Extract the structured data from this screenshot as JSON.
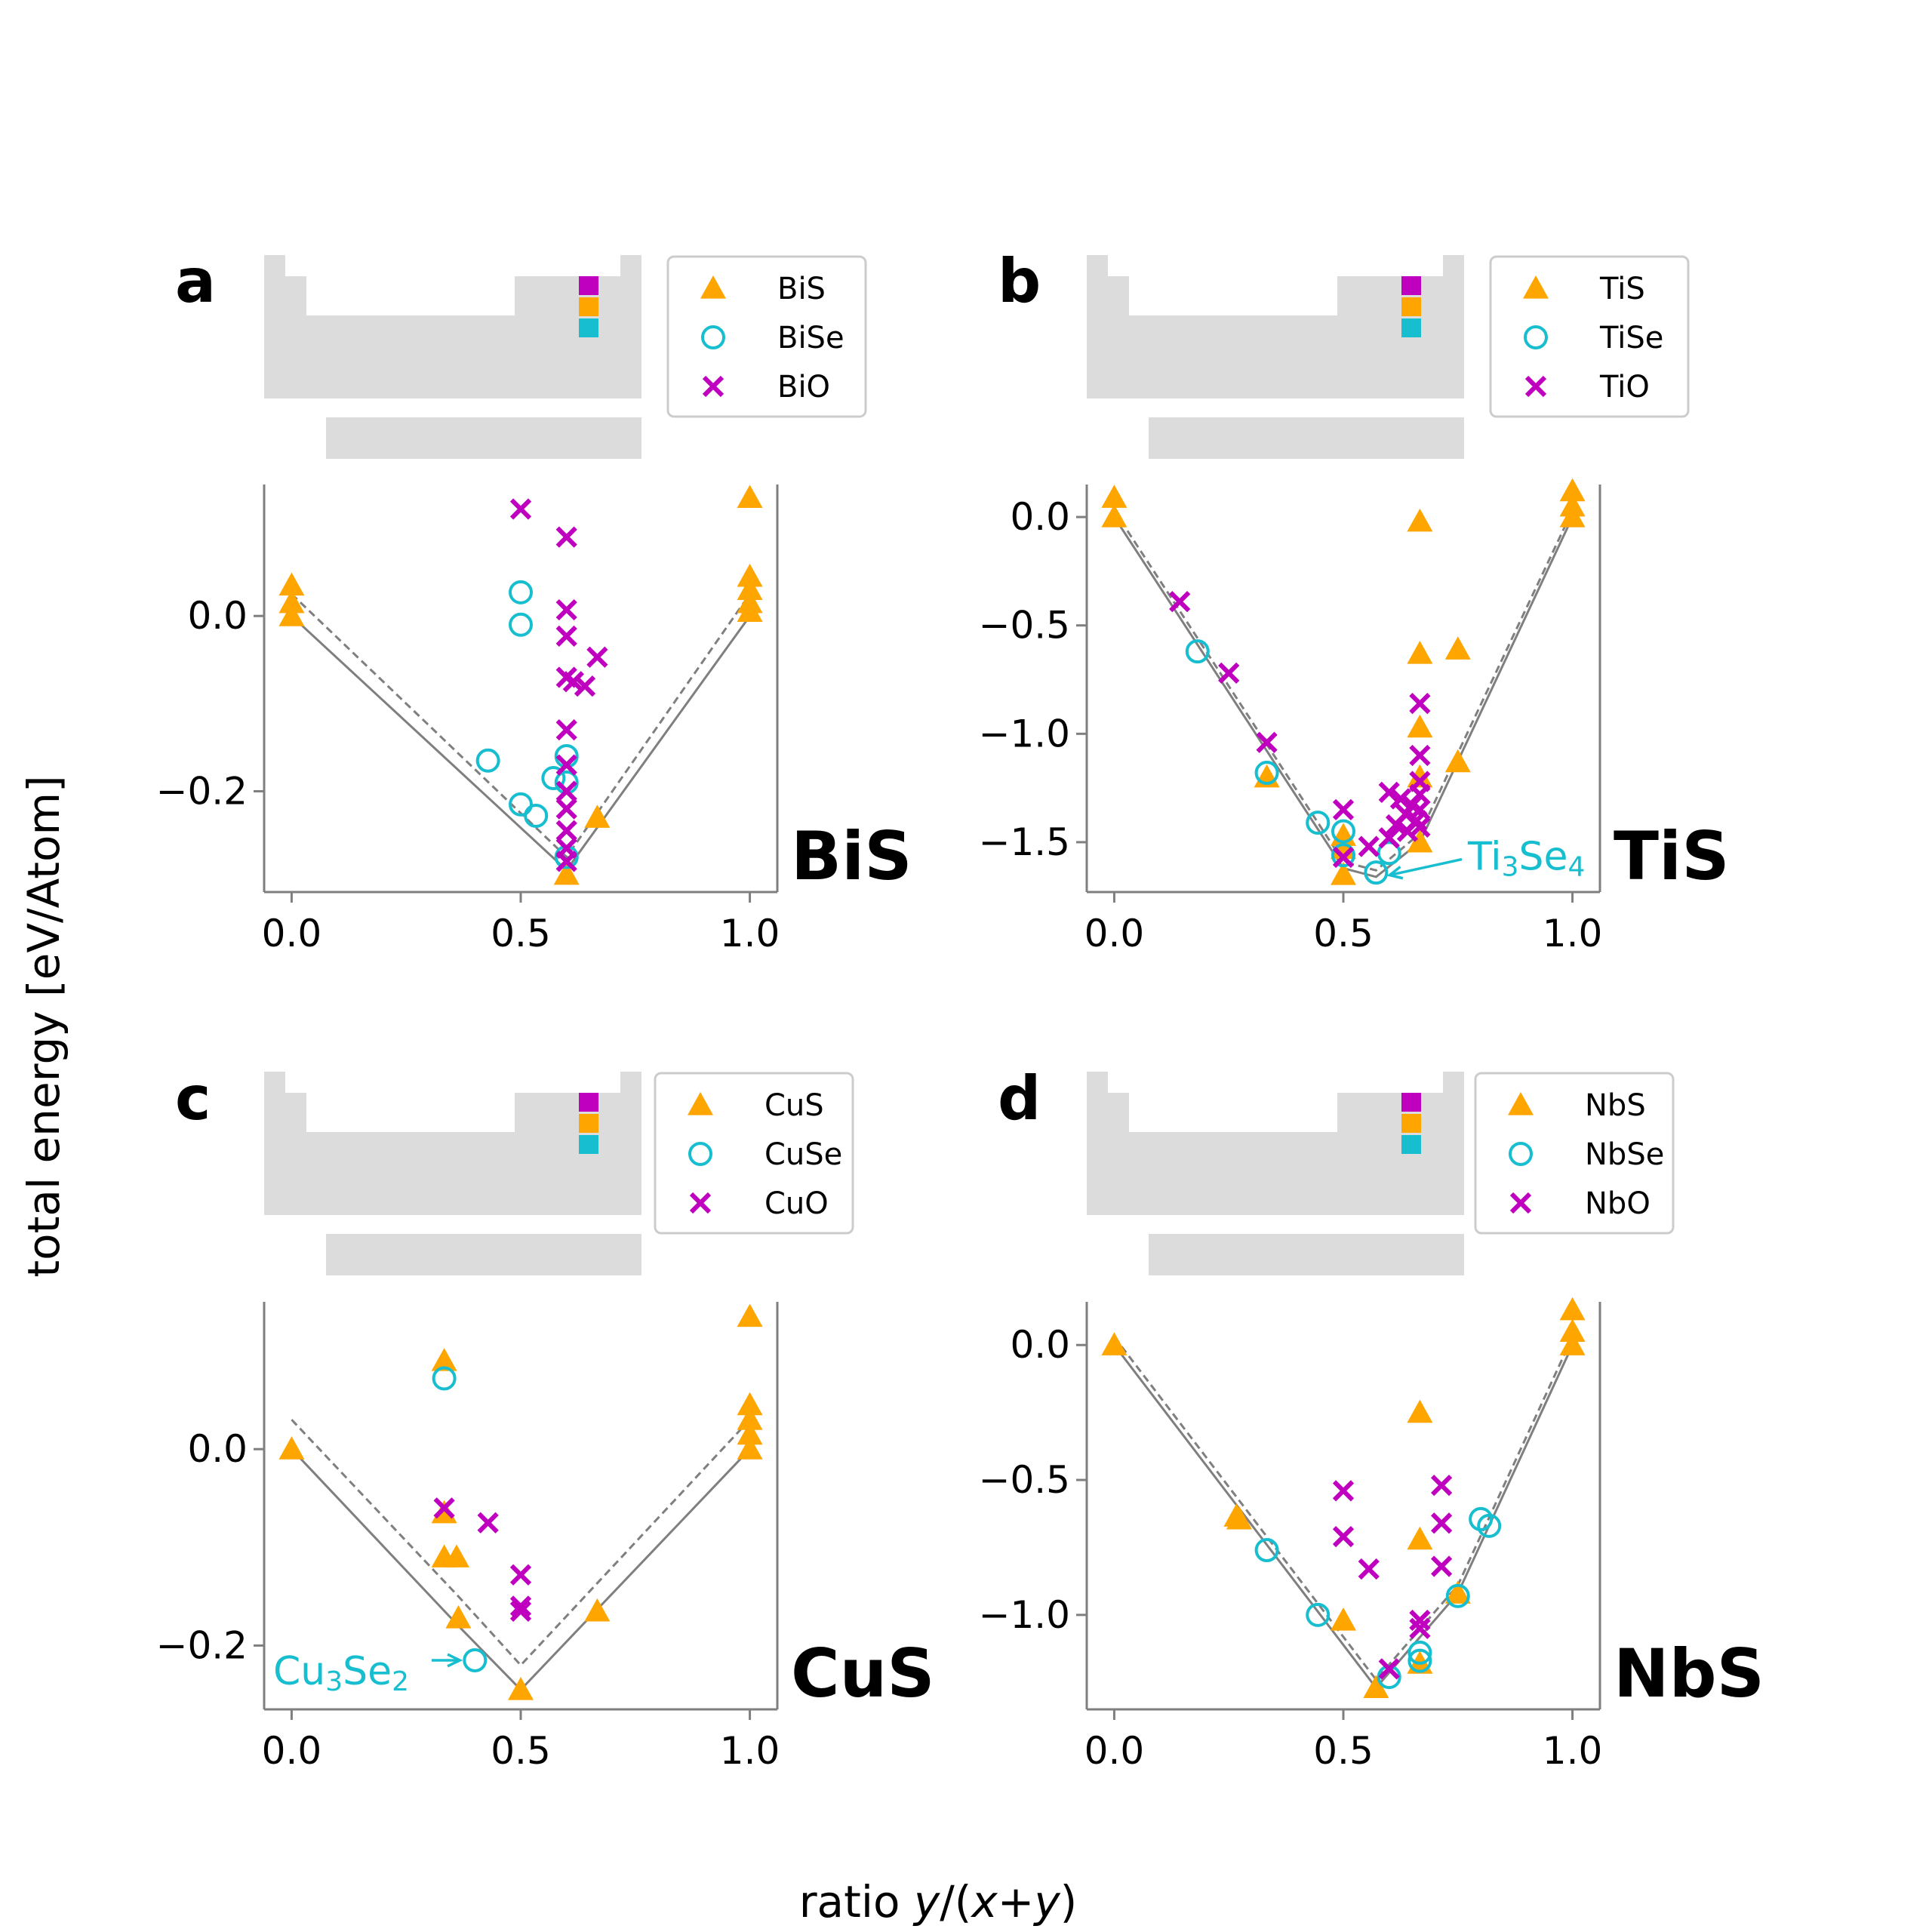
{
  "figure": {
    "ylabel": "total energy [eV/Atom]",
    "xlabel_parts": [
      "ratio ",
      "y",
      "/(",
      "x",
      "+",
      "y",
      ")"
    ]
  },
  "colors": {
    "sulfide": "#ffa500",
    "selenide": "#17becf",
    "oxide": "#bf00bf",
    "hull": "#7f7f7f",
    "periodic_table": "#dcdcdc",
    "axis": "#7f7f7f"
  },
  "chart_data": [
    {
      "type": "scatter",
      "letter": "a",
      "name": "BiS",
      "legend": [
        "BiS",
        "BiSe",
        "BiO"
      ],
      "xlim": [
        -0.06,
        1.06
      ],
      "ylim": [
        -0.315,
        0.15
      ],
      "xticks": [
        0.0,
        0.5,
        1.0
      ],
      "xticklabels": [
        "0.0",
        "0.5",
        "1.0"
      ],
      "yticks": [
        0.0,
        -0.2
      ],
      "yticklabels": [
        "0.0",
        "−0.2"
      ],
      "annotation": null,
      "series": [
        {
          "name": "BiS",
          "marker": "triangle",
          "points": [
            [
              0,
              0.035
            ],
            [
              0,
              0.015
            ],
            [
              0,
              0.0
            ],
            [
              0.6,
              -0.295
            ],
            [
              0.667,
              -0.23
            ],
            [
              1.0,
              0.135
            ],
            [
              1.0,
              0.045
            ],
            [
              1.0,
              0.03
            ],
            [
              1.0,
              0.015
            ],
            [
              1.0,
              0.005
            ]
          ]
        },
        {
          "name": "BiSe",
          "marker": "circle",
          "points": [
            [
              0.4286,
              -0.165
            ],
            [
              0.5,
              0.027
            ],
            [
              0.5,
              -0.01
            ],
            [
              0.5,
              -0.215
            ],
            [
              0.5333,
              -0.228
            ],
            [
              0.5714,
              -0.185
            ],
            [
              0.6,
              -0.16
            ],
            [
              0.6,
              -0.19
            ],
            [
              0.6,
              -0.275
            ]
          ]
        },
        {
          "name": "BiO",
          "marker": "x",
          "points": [
            [
              0.5,
              0.122
            ],
            [
              0.6,
              0.09
            ],
            [
              0.6,
              0.007
            ],
            [
              0.6,
              -0.023
            ],
            [
              0.6,
              -0.07
            ],
            [
              0.6,
              -0.13
            ],
            [
              0.6,
              -0.17
            ],
            [
              0.6,
              -0.2
            ],
            [
              0.6,
              -0.22
            ],
            [
              0.6,
              -0.245
            ],
            [
              0.6,
              -0.265
            ],
            [
              0.6,
              -0.28
            ],
            [
              0.615,
              -0.075
            ],
            [
              0.64,
              -0.08
            ],
            [
              0.667,
              -0.047
            ]
          ]
        }
      ],
      "hull_solid": [
        [
          0,
          0.0
        ],
        [
          0.6,
          -0.29
        ],
        [
          1.0,
          0.0
        ]
      ],
      "hull_dashed": [
        [
          0,
          0.025
        ],
        [
          0.6,
          -0.275
        ],
        [
          1.0,
          0.025
        ]
      ]
    },
    {
      "type": "scatter",
      "letter": "b",
      "name": "TiS",
      "legend": [
        "TiS",
        "TiSe",
        "TiO"
      ],
      "xlim": [
        -0.06,
        1.06
      ],
      "ylim": [
        -1.73,
        0.15
      ],
      "xticks": [
        0.0,
        0.5,
        1.0
      ],
      "xticklabels": [
        "0.0",
        "0.5",
        "1.0"
      ],
      "yticks": [
        0.0,
        -0.5,
        -1.0,
        -1.5
      ],
      "yticklabels": [
        "0.0",
        "−0.5",
        "−1.0",
        "−1.5"
      ],
      "annotation": {
        "text": "Ti",
        "sub": "3",
        "text2": "Se",
        "sub2": "4",
        "x": 0.5714,
        "y": -1.645
      },
      "series": [
        {
          "name": "TiS",
          "marker": "triangle",
          "points": [
            [
              0,
              0.09
            ],
            [
              0,
              0.0
            ],
            [
              0.333,
              -1.2
            ],
            [
              0.5,
              -1.47
            ],
            [
              0.5,
              -1.53
            ],
            [
              0.5,
              -1.65
            ],
            [
              0.667,
              -0.02
            ],
            [
              0.667,
              -0.63
            ],
            [
              0.667,
              -0.97
            ],
            [
              0.667,
              -1.2
            ],
            [
              0.667,
              -1.5
            ],
            [
              0.75,
              -0.61
            ],
            [
              0.75,
              -1.13
            ],
            [
              1.0,
              0.12
            ],
            [
              1.0,
              0.05
            ],
            [
              1.0,
              0.0
            ]
          ]
        },
        {
          "name": "TiSe",
          "marker": "circle",
          "points": [
            [
              0.1818,
              -0.62
            ],
            [
              0.333,
              -1.18
            ],
            [
              0.4444,
              -1.41
            ],
            [
              0.5,
              -1.45
            ],
            [
              0.5,
              -1.56
            ],
            [
              0.5714,
              -1.64
            ],
            [
              0.6,
              -1.55
            ]
          ]
        },
        {
          "name": "TiO",
          "marker": "x",
          "points": [
            [
              0.1429,
              -0.39
            ],
            [
              0.25,
              -0.72
            ],
            [
              0.333,
              -1.04
            ],
            [
              0.5,
              -1.35
            ],
            [
              0.5,
              -1.57
            ],
            [
              0.5556,
              -1.52
            ],
            [
              0.6,
              -1.27
            ],
            [
              0.6,
              -1.48
            ],
            [
              0.6154,
              -1.42
            ],
            [
              0.625,
              -1.3
            ],
            [
              0.636,
              -1.37
            ],
            [
              0.64,
              -1.45
            ],
            [
              0.65,
              -1.33
            ],
            [
              0.66,
              -1.4
            ],
            [
              0.667,
              -0.86
            ],
            [
              0.667,
              -1.1
            ],
            [
              0.667,
              -1.22
            ],
            [
              0.667,
              -1.28
            ],
            [
              0.667,
              -1.35
            ],
            [
              0.667,
              -1.43
            ]
          ]
        }
      ],
      "hull_solid": [
        [
          0,
          0.0
        ],
        [
          0.5,
          -1.62
        ],
        [
          0.5714,
          -1.66
        ],
        [
          0.667,
          -1.5
        ],
        [
          1.0,
          0.0
        ]
      ],
      "hull_dashed": [
        [
          0,
          0.03
        ],
        [
          0.5,
          -1.59
        ],
        [
          0.5714,
          -1.63
        ],
        [
          0.667,
          -1.46
        ],
        [
          1.0,
          0.03
        ]
      ]
    },
    {
      "type": "scatter",
      "letter": "c",
      "name": "CuS",
      "legend": [
        "CuS",
        "CuSe",
        "CuO"
      ],
      "xlim": [
        -0.06,
        1.06
      ],
      "ylim": [
        -0.265,
        0.15
      ],
      "xticks": [
        0.0,
        0.5,
        1.0
      ],
      "xticklabels": [
        "0.0",
        "0.5",
        "1.0"
      ],
      "yticks": [
        0.0,
        -0.2
      ],
      "yticklabels": [
        "0.0",
        "−0.2"
      ],
      "annotation": {
        "text": "Cu",
        "sub": "3",
        "text2": "Se",
        "sub2": "2",
        "x": 0.4,
        "y": -0.215
      },
      "series": [
        {
          "name": "CuS",
          "marker": "triangle",
          "points": [
            [
              0,
              0.0
            ],
            [
              0.333,
              0.09
            ],
            [
              0.333,
              -0.065
            ],
            [
              0.333,
              -0.11
            ],
            [
              0.36,
              -0.11
            ],
            [
              0.364,
              -0.172
            ],
            [
              0.5,
              -0.245
            ],
            [
              0.667,
              -0.165
            ],
            [
              1.0,
              0.135
            ],
            [
              1.0,
              0.045
            ],
            [
              1.0,
              0.03
            ],
            [
              1.0,
              0.015
            ],
            [
              1.0,
              0.0
            ]
          ]
        },
        {
          "name": "CuSe",
          "marker": "circle",
          "points": [
            [
              0.333,
              0.072
            ],
            [
              0.4,
              -0.215
            ]
          ]
        },
        {
          "name": "CuO",
          "marker": "x",
          "points": [
            [
              0.333,
              -0.06
            ],
            [
              0.4286,
              -0.075
            ],
            [
              0.5,
              -0.128
            ],
            [
              0.5,
              -0.16
            ],
            [
              0.5,
              -0.165
            ]
          ]
        }
      ],
      "hull_solid": [
        [
          0,
          0.0
        ],
        [
          0.364,
          -0.18
        ],
        [
          0.5,
          -0.245
        ],
        [
          1.0,
          0.0
        ]
      ],
      "hull_dashed": [
        [
          0,
          0.03
        ],
        [
          0.364,
          -0.15
        ],
        [
          0.5,
          -0.22
        ],
        [
          1.0,
          0.03
        ]
      ]
    },
    {
      "type": "scatter",
      "letter": "d",
      "name": "NbS",
      "legend": [
        "NbS",
        "NbSe",
        "NbO"
      ],
      "xlim": [
        -0.06,
        1.06
      ],
      "ylim": [
        -1.35,
        0.16
      ],
      "xticks": [
        0.0,
        0.5,
        1.0
      ],
      "xticklabels": [
        "0.0",
        "0.5",
        "1.0"
      ],
      "yticks": [
        0.0,
        -0.5,
        -1.0
      ],
      "yticklabels": [
        "0.0",
        "−0.5",
        "−1.0"
      ],
      "annotation": null,
      "series": [
        {
          "name": "NbS",
          "marker": "triangle",
          "points": [
            [
              0,
              0.0
            ],
            [
              0.2667,
              -0.635
            ],
            [
              0.2727,
              -0.645
            ],
            [
              0.5,
              -1.02
            ],
            [
              0.5714,
              -1.27
            ],
            [
              0.667,
              -0.25
            ],
            [
              0.667,
              -0.72
            ],
            [
              0.667,
              -1.18
            ],
            [
              0.75,
              -0.92
            ],
            [
              1.0,
              0.13
            ],
            [
              1.0,
              0.05
            ],
            [
              1.0,
              0.0
            ]
          ]
        },
        {
          "name": "NbSe",
          "marker": "circle",
          "points": [
            [
              0.333,
              -0.76
            ],
            [
              0.4444,
              -1.0
            ],
            [
              0.6,
              -1.23
            ],
            [
              0.667,
              -1.14
            ],
            [
              0.667,
              -1.17
            ],
            [
              0.75,
              -0.93
            ],
            [
              0.8,
              -0.645
            ],
            [
              0.8182,
              -0.67
            ]
          ]
        },
        {
          "name": "NbO",
          "marker": "x",
          "points": [
            [
              0.5,
              -0.54
            ],
            [
              0.5,
              -0.71
            ],
            [
              0.5556,
              -0.83
            ],
            [
              0.6,
              -1.2
            ],
            [
              0.667,
              -1.02
            ],
            [
              0.667,
              -1.05
            ],
            [
              0.7143,
              -0.52
            ],
            [
              0.7143,
              -0.66
            ],
            [
              0.7143,
              -0.82
            ]
          ]
        }
      ],
      "hull_solid": [
        [
          0,
          0.0
        ],
        [
          0.5714,
          -1.27
        ],
        [
          0.75,
          -0.92
        ],
        [
          1.0,
          0.0
        ]
      ],
      "hull_dashed": [
        [
          0,
          0.03
        ],
        [
          0.5714,
          -1.24
        ],
        [
          0.75,
          -0.89
        ],
        [
          1.0,
          0.03
        ]
      ]
    }
  ]
}
